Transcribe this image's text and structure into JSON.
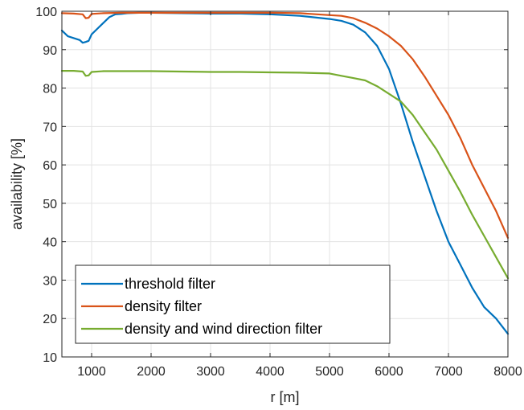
{
  "chart_data": {
    "type": "line",
    "title": "",
    "xlabel": "r [m]",
    "ylabel": "availability [%]",
    "xlim": [
      500,
      8000
    ],
    "ylim": [
      10,
      100
    ],
    "xticks": [
      1000,
      2000,
      3000,
      4000,
      5000,
      6000,
      7000,
      8000
    ],
    "yticks": [
      10,
      20,
      30,
      40,
      50,
      60,
      70,
      80,
      90,
      100
    ],
    "grid": true,
    "legend_position": "bottom-left",
    "series": [
      {
        "name": "threshold filter",
        "color": "#0072BD",
        "x": [
          500,
          600,
          700,
          800,
          850,
          900,
          950,
          1000,
          1100,
          1200,
          1300,
          1400,
          1500,
          1600,
          1800,
          2000,
          2500,
          3000,
          3500,
          4000,
          4500,
          5000,
          5200,
          5400,
          5600,
          5800,
          6000,
          6200,
          6400,
          6600,
          6800,
          7000,
          7200,
          7400,
          7600,
          7800,
          8000
        ],
        "y": [
          95,
          93.5,
          93,
          92.5,
          91.8,
          92,
          92.3,
          94,
          95.5,
          97,
          98.5,
          99.2,
          99.3,
          99.5,
          99.6,
          99.6,
          99.5,
          99.4,
          99.4,
          99.2,
          98.8,
          98,
          97.5,
          96.5,
          94.5,
          91,
          85,
          76,
          66,
          57,
          48,
          40,
          34,
          28,
          23,
          20,
          16
        ]
      },
      {
        "name": "density filter",
        "color": "#D95319",
        "x": [
          500,
          700,
          850,
          900,
          950,
          1000,
          1200,
          1500,
          2000,
          3000,
          4000,
          4500,
          5000,
          5200,
          5400,
          5600,
          5800,
          6000,
          6200,
          6400,
          6600,
          6800,
          7000,
          7200,
          7400,
          7600,
          7800,
          8000
        ],
        "y": [
          99.5,
          99.4,
          99.2,
          98.2,
          98.3,
          99.3,
          99.5,
          99.6,
          99.6,
          99.6,
          99.6,
          99.5,
          99,
          98.8,
          98.2,
          97,
          95.5,
          93.5,
          91,
          87.5,
          83,
          78,
          73,
          67,
          60,
          54,
          48,
          41
        ]
      },
      {
        "name": "density and wind direction filter",
        "color": "#77AC30",
        "x": [
          500,
          700,
          850,
          900,
          950,
          1000,
          1200,
          1500,
          2000,
          2500,
          3000,
          3500,
          4000,
          4500,
          5000,
          5200,
          5400,
          5600,
          5800,
          6000,
          6200,
          6400,
          6600,
          6800,
          7000,
          7200,
          7400,
          7600,
          7800,
          8000
        ],
        "y": [
          84.5,
          84.5,
          84.3,
          83.2,
          83.3,
          84.2,
          84.4,
          84.4,
          84.4,
          84.3,
          84.2,
          84.2,
          84.1,
          84.0,
          83.8,
          83.2,
          82.6,
          82,
          80.5,
          78.5,
          76.5,
          73,
          68.5,
          64,
          58.5,
          53,
          47,
          41.5,
          36,
          30.5
        ]
      }
    ]
  }
}
